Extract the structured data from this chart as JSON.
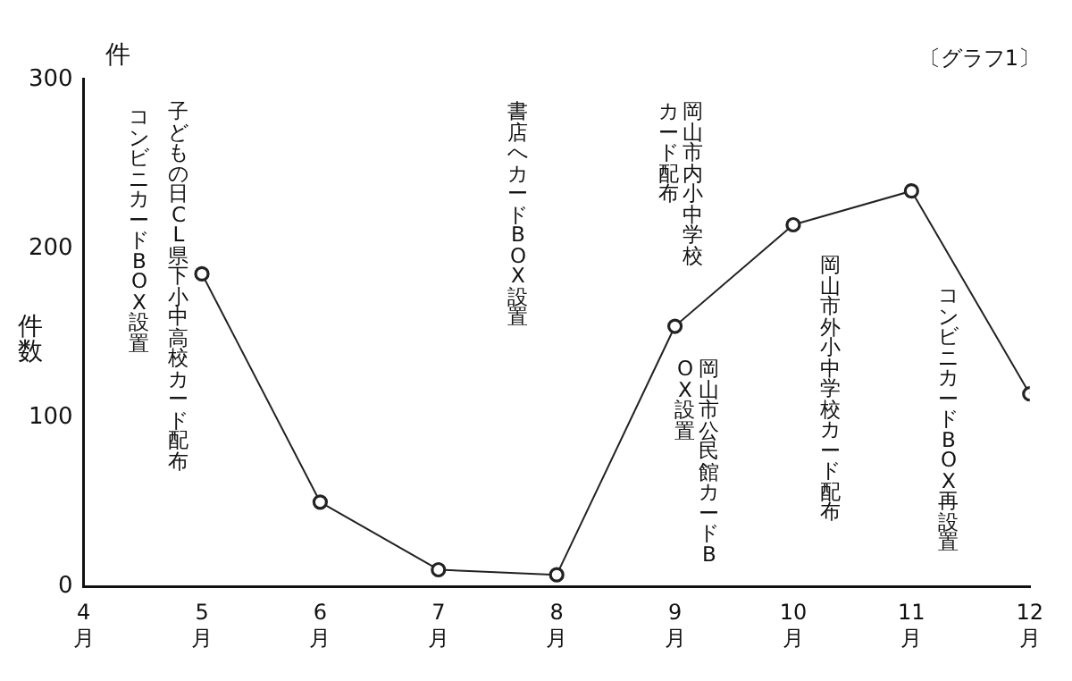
{
  "chart_data": {
    "type": "line",
    "title": "〔グラフ1〕",
    "ylabel": "件数",
    "x": [
      5,
      6,
      7,
      8,
      9,
      10,
      11,
      12
    ],
    "series": [
      {
        "color": "#222222",
        "values": [
          185,
          50,
          10,
          7,
          154,
          214,
          234,
          114
        ]
      }
    ],
    "xlim": [
      4,
      12
    ],
    "xticks": [
      {
        "value": 4,
        "label": "4月"
      },
      {
        "value": 5,
        "label": "5月"
      },
      {
        "value": 6,
        "label": "6月"
      },
      {
        "value": 7,
        "label": "7月"
      },
      {
        "value": 8,
        "label": "8月"
      },
      {
        "value": 9,
        "label": "9月"
      },
      {
        "value": 10,
        "label": "10月"
      },
      {
        "value": 11,
        "label": "11月"
      },
      {
        "value": 12,
        "label": "12月"
      }
    ],
    "ylim": [
      0,
      300
    ],
    "yticks": [
      0,
      100,
      200,
      300
    ],
    "grid": false,
    "legend": false,
    "marker": "circle",
    "line_style": "solid",
    "annotations": [
      "件",
      "コンビニカードBOX設置",
      "子どもの日CL県下小中高校カード配布",
      "書店へカードBOX設置",
      "岡山市内小中学校カード配布",
      "岡山市公民館カードBOX設置",
      "岡山市外小中学校カード配布",
      "コンビニカードBOX再設置"
    ]
  }
}
